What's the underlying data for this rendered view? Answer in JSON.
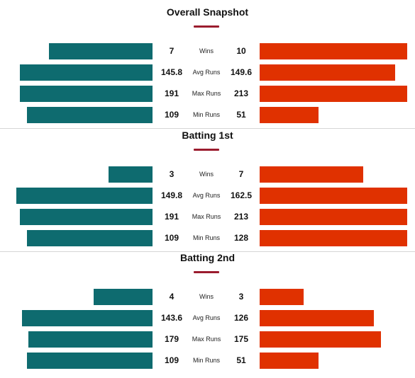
{
  "colors": {
    "team_a": "#0e6b6f",
    "team_b": "#e03100",
    "accent": "#9b1c2e"
  },
  "sections": [
    {
      "title": "Overall Snapshot",
      "rows": [
        {
          "label": "Wins",
          "left": "7",
          "right": "10"
        },
        {
          "label": "Avg Runs",
          "left": "145.8",
          "right": "149.6"
        },
        {
          "label": "Max Runs",
          "left": "191",
          "right": "213"
        },
        {
          "label": "Min Runs",
          "left": "109",
          "right": "51"
        }
      ]
    },
    {
      "title": "Batting 1st",
      "rows": [
        {
          "label": "Wins",
          "left": "3",
          "right": "7"
        },
        {
          "label": "Avg Runs",
          "left": "149.8",
          "right": "162.5"
        },
        {
          "label": "Max Runs",
          "left": "191",
          "right": "213"
        },
        {
          "label": "Min Runs",
          "left": "109",
          "right": "128"
        }
      ]
    },
    {
      "title": "Batting 2nd",
      "rows": [
        {
          "label": "Wins",
          "left": "4",
          "right": "3"
        },
        {
          "label": "Avg Runs",
          "left": "143.6",
          "right": "126"
        },
        {
          "label": "Max Runs",
          "left": "179",
          "right": "175"
        },
        {
          "label": "Min Runs",
          "left": "109",
          "right": "51"
        }
      ]
    }
  ]
}
